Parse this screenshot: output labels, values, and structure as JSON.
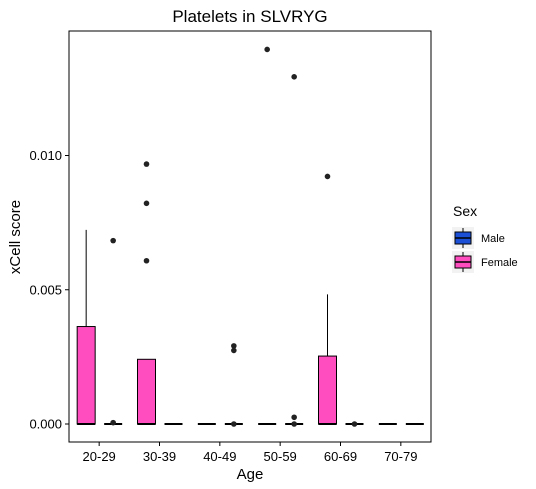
{
  "chart_data": {
    "type": "boxplot",
    "title": "Platelets in SLVRYG",
    "xlabel": "Age",
    "ylabel": "xCell score",
    "ylim": [
      -0.0008,
      0.0142
    ],
    "y_ticks": [
      0.0,
      0.005,
      0.01
    ],
    "y_tick_labels": [
      "0.000",
      "0.005",
      "0.010"
    ],
    "categories": [
      "20-29",
      "30-39",
      "40-49",
      "50-59",
      "60-69",
      "70-79"
    ],
    "legend": {
      "title": "Sex",
      "placement": "right",
      "entries": [
        {
          "label": "Male",
          "color": "#1a4fd6"
        },
        {
          "label": "Female",
          "color": "#ff4dbf"
        }
      ]
    },
    "grid": false,
    "series": [
      {
        "name": "Female",
        "color": "#ff4dbf",
        "boxes": [
          {
            "category": "20-29",
            "q1": 0.0,
            "median": 0.0,
            "q3": 0.00363,
            "whisker_low": 0.0,
            "whisker_high": 0.00723,
            "outliers": []
          },
          {
            "category": "30-39",
            "q1": 0.0,
            "median": 0.0,
            "q3": 0.00241,
            "whisker_low": 0.0,
            "whisker_high": 0.00241,
            "outliers": [
              0.00968,
              0.00822,
              0.00608
            ]
          },
          {
            "category": "40-49",
            "q1": 0.0,
            "median": 0.0,
            "q3": 0.0,
            "whisker_low": 0.0,
            "whisker_high": 0.0,
            "outliers": []
          },
          {
            "category": "50-59",
            "q1": 0.0,
            "median": 0.0,
            "q3": 0.0,
            "whisker_low": 0.0,
            "whisker_high": 0.0,
            "outliers": [
              0.01395
            ]
          },
          {
            "category": "60-69",
            "q1": 0.0,
            "median": 0.0,
            "q3": 0.00253,
            "whisker_low": 0.0,
            "whisker_high": 0.00483,
            "outliers": [
              0.00922
            ]
          },
          {
            "category": "70-79",
            "q1": 0.0,
            "median": 0.0,
            "q3": 0.0,
            "whisker_low": 0.0,
            "whisker_high": 0.0,
            "outliers": []
          }
        ]
      },
      {
        "name": "Male",
        "color": "#1a4fd6",
        "boxes": [
          {
            "category": "20-29",
            "q1": 0.0,
            "median": 0.0,
            "q3": 0.0,
            "whisker_low": 0.0,
            "whisker_high": 0.0,
            "outliers": [
              0.00683,
              5e-05
            ]
          },
          {
            "category": "30-39",
            "q1": 0.0,
            "median": 0.0,
            "q3": 0.0,
            "whisker_low": 0.0,
            "whisker_high": 0.0,
            "outliers": []
          },
          {
            "category": "40-49",
            "q1": 0.0,
            "median": 0.0,
            "q3": 0.0,
            "whisker_low": 0.0,
            "whisker_high": 0.0,
            "outliers": [
              0.00291,
              0.00274,
              0.0
            ]
          },
          {
            "category": "50-59",
            "q1": 0.0,
            "median": 0.0,
            "q3": 0.0,
            "whisker_low": 0.0,
            "whisker_high": 0.0,
            "outliers": [
              0.01293,
              0.00025,
              0.0
            ]
          },
          {
            "category": "60-69",
            "q1": 0.0,
            "median": 0.0,
            "q3": 0.0,
            "whisker_low": 0.0,
            "whisker_high": 0.0,
            "outliers": [
              0.0
            ]
          },
          {
            "category": "70-79",
            "q1": 0.0,
            "median": 0.0,
            "q3": 0.0,
            "whisker_low": 0.0,
            "whisker_high": 0.0,
            "outliers": []
          }
        ]
      }
    ]
  }
}
